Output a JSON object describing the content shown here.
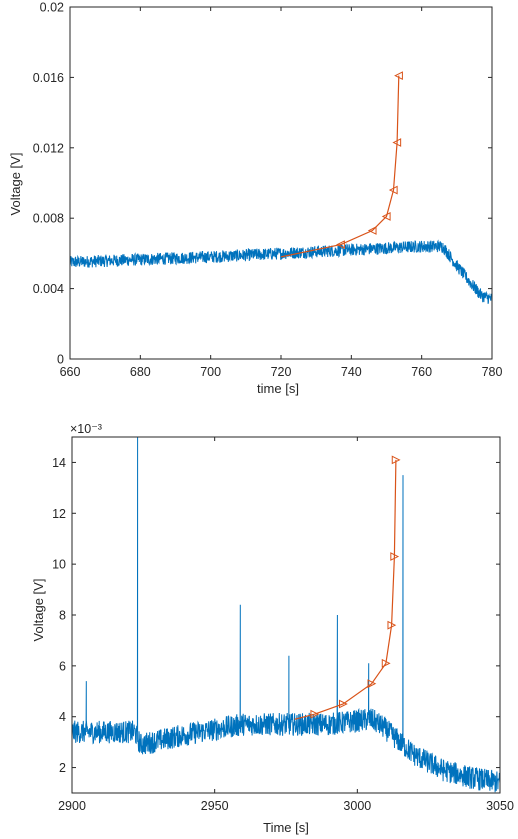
{
  "chart_data": [
    {
      "type": "line",
      "title": "",
      "xlabel": "time [s]",
      "ylabel": "Voltage [V]",
      "xlim": [
        660,
        780
      ],
      "ylim": [
        0,
        0.02
      ],
      "xticks": [
        660,
        680,
        700,
        720,
        740,
        760,
        780
      ],
      "xtick_labels": [
        "660",
        "680",
        "700",
        "720",
        "740",
        "760",
        "780"
      ],
      "yticks": [
        0,
        0.004,
        0.008,
        0.012,
        0.016,
        0.02
      ],
      "ytick_labels": [
        "0",
        "0.004",
        "0.008",
        "0.012",
        "0.016",
        "0.02"
      ],
      "grid": false,
      "legend": "none",
      "colors": {
        "signal": "#0072BD",
        "fit": "#D95319"
      },
      "signal": {
        "noise_amplitude": 0.00035,
        "trend": [
          {
            "x": 660,
            "y": 0.0055
          },
          {
            "x": 700,
            "y": 0.0058
          },
          {
            "x": 720,
            "y": 0.006
          },
          {
            "x": 740,
            "y": 0.0062
          },
          {
            "x": 760,
            "y": 0.0064
          },
          {
            "x": 766,
            "y": 0.0064
          },
          {
            "x": 770,
            "y": 0.0053
          },
          {
            "x": 774,
            "y": 0.0043
          },
          {
            "x": 777,
            "y": 0.0036
          },
          {
            "x": 780,
            "y": 0.0034
          }
        ],
        "spikes": []
      },
      "fit": {
        "marker": "triangle-left",
        "x": [
          720,
          737,
          746,
          750,
          752,
          753,
          753.5
        ],
        "y": [
          0.0058,
          0.0065,
          0.0073,
          0.0081,
          0.0096,
          0.0123,
          0.0161
        ],
        "marked": [
          false,
          true,
          true,
          true,
          true,
          true,
          true
        ]
      }
    },
    {
      "type": "line",
      "title": "",
      "xlabel": "Time [s]",
      "ylabel": "Voltage [V]",
      "exponent_label": "×10⁻³",
      "xlim": [
        2900,
        3050
      ],
      "ylim": [
        1,
        15
      ],
      "xticks": [
        2900,
        2950,
        3000,
        3050
      ],
      "xtick_labels": [
        "2900",
        "2950",
        "3000",
        "3050"
      ],
      "yticks": [
        2,
        4,
        6,
        8,
        10,
        12,
        14
      ],
      "ytick_labels": [
        "2",
        "4",
        "6",
        "8",
        "10",
        "12",
        "14"
      ],
      "grid": false,
      "legend": "none",
      "colors": {
        "signal": "#0072BD",
        "fit": "#D95319"
      },
      "signal": {
        "noise_amplitude": 0.45,
        "trend": [
          {
            "x": 2900,
            "y": 3.4
          },
          {
            "x": 2922,
            "y": 3.4
          },
          {
            "x": 2924,
            "y": 2.9
          },
          {
            "x": 2940,
            "y": 3.3
          },
          {
            "x": 2960,
            "y": 3.7
          },
          {
            "x": 2990,
            "y": 3.7
          },
          {
            "x": 3005,
            "y": 3.9
          },
          {
            "x": 3009,
            "y": 3.6
          },
          {
            "x": 3015,
            "y": 3.0
          },
          {
            "x": 3020,
            "y": 2.5
          },
          {
            "x": 3030,
            "y": 1.9
          },
          {
            "x": 3040,
            "y": 1.6
          },
          {
            "x": 3050,
            "y": 1.4
          }
        ],
        "spikes": [
          {
            "x": 2923,
            "y": 15
          },
          {
            "x": 2959,
            "y": 8.4
          },
          {
            "x": 2976,
            "y": 6.4
          },
          {
            "x": 2993,
            "y": 8.0
          },
          {
            "x": 3016,
            "y": 13.5
          },
          {
            "x": 2905,
            "y": 5.4
          },
          {
            "x": 3004,
            "y": 6.1
          }
        ]
      },
      "fit": {
        "marker": "triangle-right",
        "x": [
          2978,
          2985,
          2995,
          3005,
          3010,
          3012,
          3013,
          3013.5
        ],
        "y": [
          3.9,
          4.1,
          4.5,
          5.3,
          6.1,
          7.6,
          10.3,
          14.1
        ],
        "marked": [
          false,
          true,
          true,
          true,
          true,
          true,
          true,
          true
        ]
      }
    }
  ]
}
